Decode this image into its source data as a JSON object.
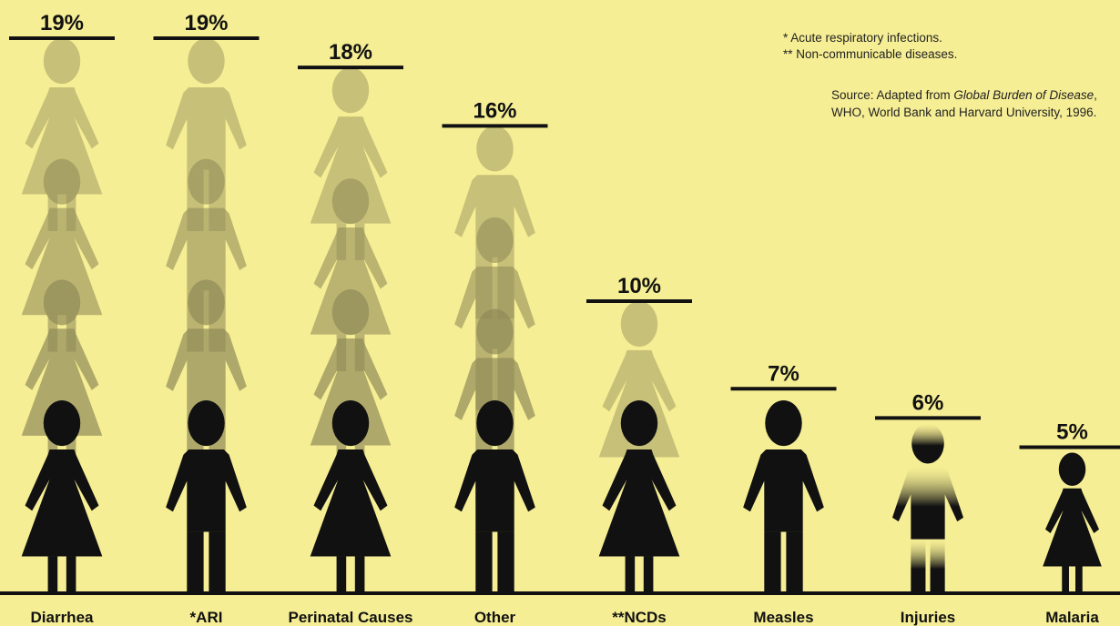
{
  "chart_data": {
    "type": "bar",
    "categories": [
      "Diarrhea",
      "*ARI",
      "Perinatal Causes",
      "Other",
      "**NCDs",
      "Measles",
      "Injuries",
      "Malaria"
    ],
    "values": [
      19,
      19,
      18,
      16,
      10,
      7,
      6,
      5
    ],
    "value_labels": [
      "19%",
      "19%",
      "18%",
      "16%",
      "10%",
      "7%",
      "6%",
      "5%"
    ],
    "ylim": [
      0,
      19
    ],
    "grid": false,
    "colors": {
      "background": "#f6ee94",
      "figure_dark": "#111111",
      "figure_light": "#8f8a58",
      "line": "#111111"
    }
  },
  "notes": [
    "* Acute respiratory infections.",
    "** Non-communicable diseases."
  ],
  "source": {
    "prefix": "Source: Adapted from ",
    "italic": "Global Burden of Disease",
    "suffix": ", WHO, World Bank and Harvard University, 1996."
  }
}
